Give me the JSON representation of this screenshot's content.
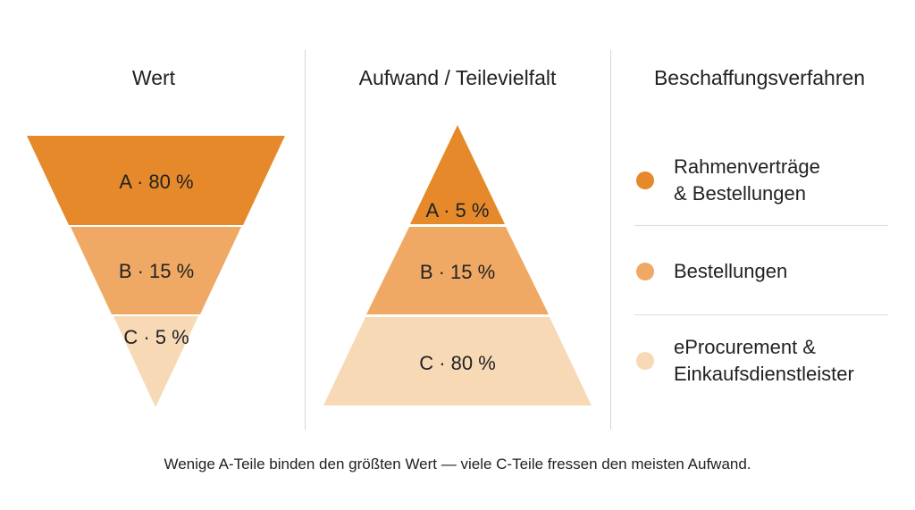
{
  "columns": {
    "value": {
      "title": "Wert",
      "segments": [
        {
          "label": "A · 80 %",
          "color": "#e6892a"
        },
        {
          "label": "B · 15 %",
          "color": "#f0a965"
        },
        {
          "label": "C · 5 %",
          "color": "#f7d9b6"
        }
      ]
    },
    "effort": {
      "title": "Aufwand / Teilevielfalt",
      "segments": [
        {
          "label": "A · 5 %",
          "color": "#e6892a"
        },
        {
          "label": "B · 15 %",
          "color": "#f0a965"
        },
        {
          "label": "C · 80 %",
          "color": "#f7d9b6"
        }
      ]
    },
    "procurement": {
      "title": "Beschaffungsverfahren",
      "items": [
        {
          "label": "Rahmenverträge\n& Bestellungen",
          "color": "#e6892a"
        },
        {
          "label": "Bestellungen",
          "color": "#f0a965"
        },
        {
          "label": "eProcurement &\nEinkaufsdienstleister",
          "color": "#f7d9b6"
        }
      ]
    }
  },
  "caption": "Wenige A-Teile binden den größten Wert — viele C-Teile fressen den meisten Aufwand."
}
